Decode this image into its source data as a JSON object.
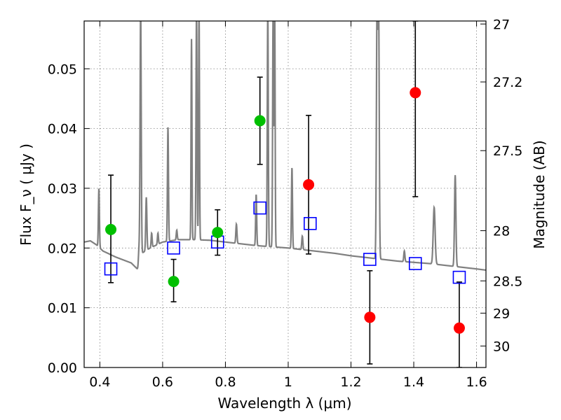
{
  "chart_data": {
    "type": "scatter",
    "xlabel": "Wavelength λ (μm)",
    "ylabel": "Flux F_ν ( μJy )",
    "y2label": "Magnitude (AB)",
    "xlim": [
      0.35,
      1.63
    ],
    "ylim": [
      0.0,
      0.058
    ],
    "grid": true,
    "x_ticks": [
      0.4,
      0.6,
      0.8,
      1.0,
      1.2,
      1.4,
      1.6
    ],
    "x_tick_labels": [
      "0.4",
      "0.6",
      "0.8",
      "1",
      "1.2",
      "1.4",
      "1.6"
    ],
    "y_ticks": [
      0.0,
      0.01,
      0.02,
      0.03,
      0.04,
      0.05
    ],
    "y_tick_labels": [
      "0.00",
      "0.01",
      "0.02",
      "0.03",
      "0.04",
      "0.05"
    ],
    "y2_ticks": [
      {
        "label": "27",
        "flux": 0.0575
      },
      {
        "label": "27.2",
        "flux": 0.0478
      },
      {
        "label": "27.5",
        "flux": 0.0363
      },
      {
        "label": "28",
        "flux": 0.0229
      },
      {
        "label": "28.5",
        "flux": 0.0145
      },
      {
        "label": "29",
        "flux": 0.0091
      },
      {
        "label": "30",
        "flux": 0.0036
      }
    ],
    "model_points": [
      {
        "x": 0.435,
        "y": 0.0165
      },
      {
        "x": 0.635,
        "y": 0.02
      },
      {
        "x": 0.775,
        "y": 0.021
      },
      {
        "x": 0.91,
        "y": 0.0267
      },
      {
        "x": 1.07,
        "y": 0.0241
      },
      {
        "x": 1.26,
        "y": 0.0181
      },
      {
        "x": 1.405,
        "y": 0.0174
      },
      {
        "x": 1.545,
        "y": 0.0151
      }
    ],
    "detections": [
      {
        "x": 0.435,
        "y": 0.0231,
        "yerr_low": 0.0142,
        "yerr_high": 0.0322
      },
      {
        "x": 0.635,
        "y": 0.0144,
        "yerr_low": 0.011,
        "yerr_high": 0.0181
      },
      {
        "x": 0.775,
        "y": 0.0226,
        "yerr_low": 0.0188,
        "yerr_high": 0.0264
      },
      {
        "x": 0.91,
        "y": 0.0413,
        "yerr_low": 0.034,
        "yerr_high": 0.0486
      }
    ],
    "non_detections": [
      {
        "x": 1.065,
        "y": 0.0306,
        "yerr_low": 0.019,
        "yerr_high": 0.0422
      },
      {
        "x": 1.26,
        "y": 0.0084,
        "yerr_low": 0.0006,
        "yerr_high": 0.0162
      },
      {
        "x": 1.405,
        "y": 0.046,
        "yerr_low": 0.0286,
        "yerr_high": 0.058
      },
      {
        "x": 1.545,
        "y": 0.0066,
        "yerr_low": 0.0,
        "yerr_high": 0.0143
      }
    ],
    "spectrum": {
      "continuum": [
        [
          0.35,
          0.021
        ],
        [
          0.37,
          0.0212
        ],
        [
          0.39,
          0.0205
        ],
        [
          0.41,
          0.0195
        ],
        [
          0.45,
          0.0185
        ],
        [
          0.5,
          0.0175
        ],
        [
          0.525,
          0.0162
        ],
        [
          0.53,
          0.019
        ],
        [
          0.56,
          0.02
        ],
        [
          0.6,
          0.021
        ],
        [
          0.65,
          0.0214
        ],
        [
          0.7,
          0.0214
        ],
        [
          0.75,
          0.0213
        ],
        [
          0.8,
          0.021
        ],
        [
          0.85,
          0.0207
        ],
        [
          0.9,
          0.0204
        ],
        [
          0.95,
          0.0202
        ],
        [
          1.0,
          0.02
        ],
        [
          1.05,
          0.0197
        ],
        [
          1.1,
          0.0194
        ],
        [
          1.15,
          0.0191
        ],
        [
          1.2,
          0.0187
        ],
        [
          1.25,
          0.0184
        ],
        [
          1.3,
          0.0181
        ],
        [
          1.35,
          0.0178
        ],
        [
          1.4,
          0.0176
        ],
        [
          1.45,
          0.0174
        ],
        [
          1.5,
          0.0171
        ],
        [
          1.55,
          0.0168
        ],
        [
          1.6,
          0.0165
        ],
        [
          1.63,
          0.0163
        ]
      ],
      "lines": [
        {
          "x": 0.397,
          "peak": 0.03,
          "w": 0.0016
        },
        {
          "x": 0.525,
          "peak": 0.02,
          "w": 0.002
        },
        {
          "x": 0.53,
          "peak": 0.06,
          "w": 0.0018
        },
        {
          "x": 0.548,
          "peak": 0.0285,
          "w": 0.0018
        },
        {
          "x": 0.565,
          "peak": 0.0225,
          "w": 0.0016
        },
        {
          "x": 0.585,
          "peak": 0.0225,
          "w": 0.0016
        },
        {
          "x": 0.617,
          "peak": 0.0402,
          "w": 0.0016
        },
        {
          "x": 0.645,
          "peak": 0.023,
          "w": 0.0016
        },
        {
          "x": 0.692,
          "peak": 0.055,
          "w": 0.0014
        },
        {
          "x": 0.708,
          "peak": 0.06,
          "w": 0.0016
        },
        {
          "x": 0.716,
          "peak": 0.06,
          "w": 0.0014
        },
        {
          "x": 0.835,
          "peak": 0.024,
          "w": 0.0018
        },
        {
          "x": 0.898,
          "peak": 0.029,
          "w": 0.0016
        },
        {
          "x": 0.935,
          "peak": 0.06,
          "w": 0.0016
        },
        {
          "x": 0.952,
          "peak": 0.06,
          "w": 0.0016
        },
        {
          "x": 0.957,
          "peak": 0.06,
          "w": 0.0014
        },
        {
          "x": 1.012,
          "peak": 0.0335,
          "w": 0.0016
        },
        {
          "x": 1.045,
          "peak": 0.022,
          "w": 0.0018
        },
        {
          "x": 1.283,
          "peak": 0.06,
          "w": 0.002
        },
        {
          "x": 1.288,
          "peak": 0.06,
          "w": 0.002
        },
        {
          "x": 1.37,
          "peak": 0.0195,
          "w": 0.0018
        },
        {
          "x": 1.465,
          "peak": 0.0268,
          "w": 0.003
        },
        {
          "x": 1.532,
          "peak": 0.0322,
          "w": 0.0022
        }
      ]
    },
    "colors": {
      "spectrum": "#808080",
      "model": "#0000ff",
      "detection": "#00bf00",
      "non_detection": "#ff0000",
      "errorbar": "#000000",
      "grid": "#808080"
    }
  }
}
